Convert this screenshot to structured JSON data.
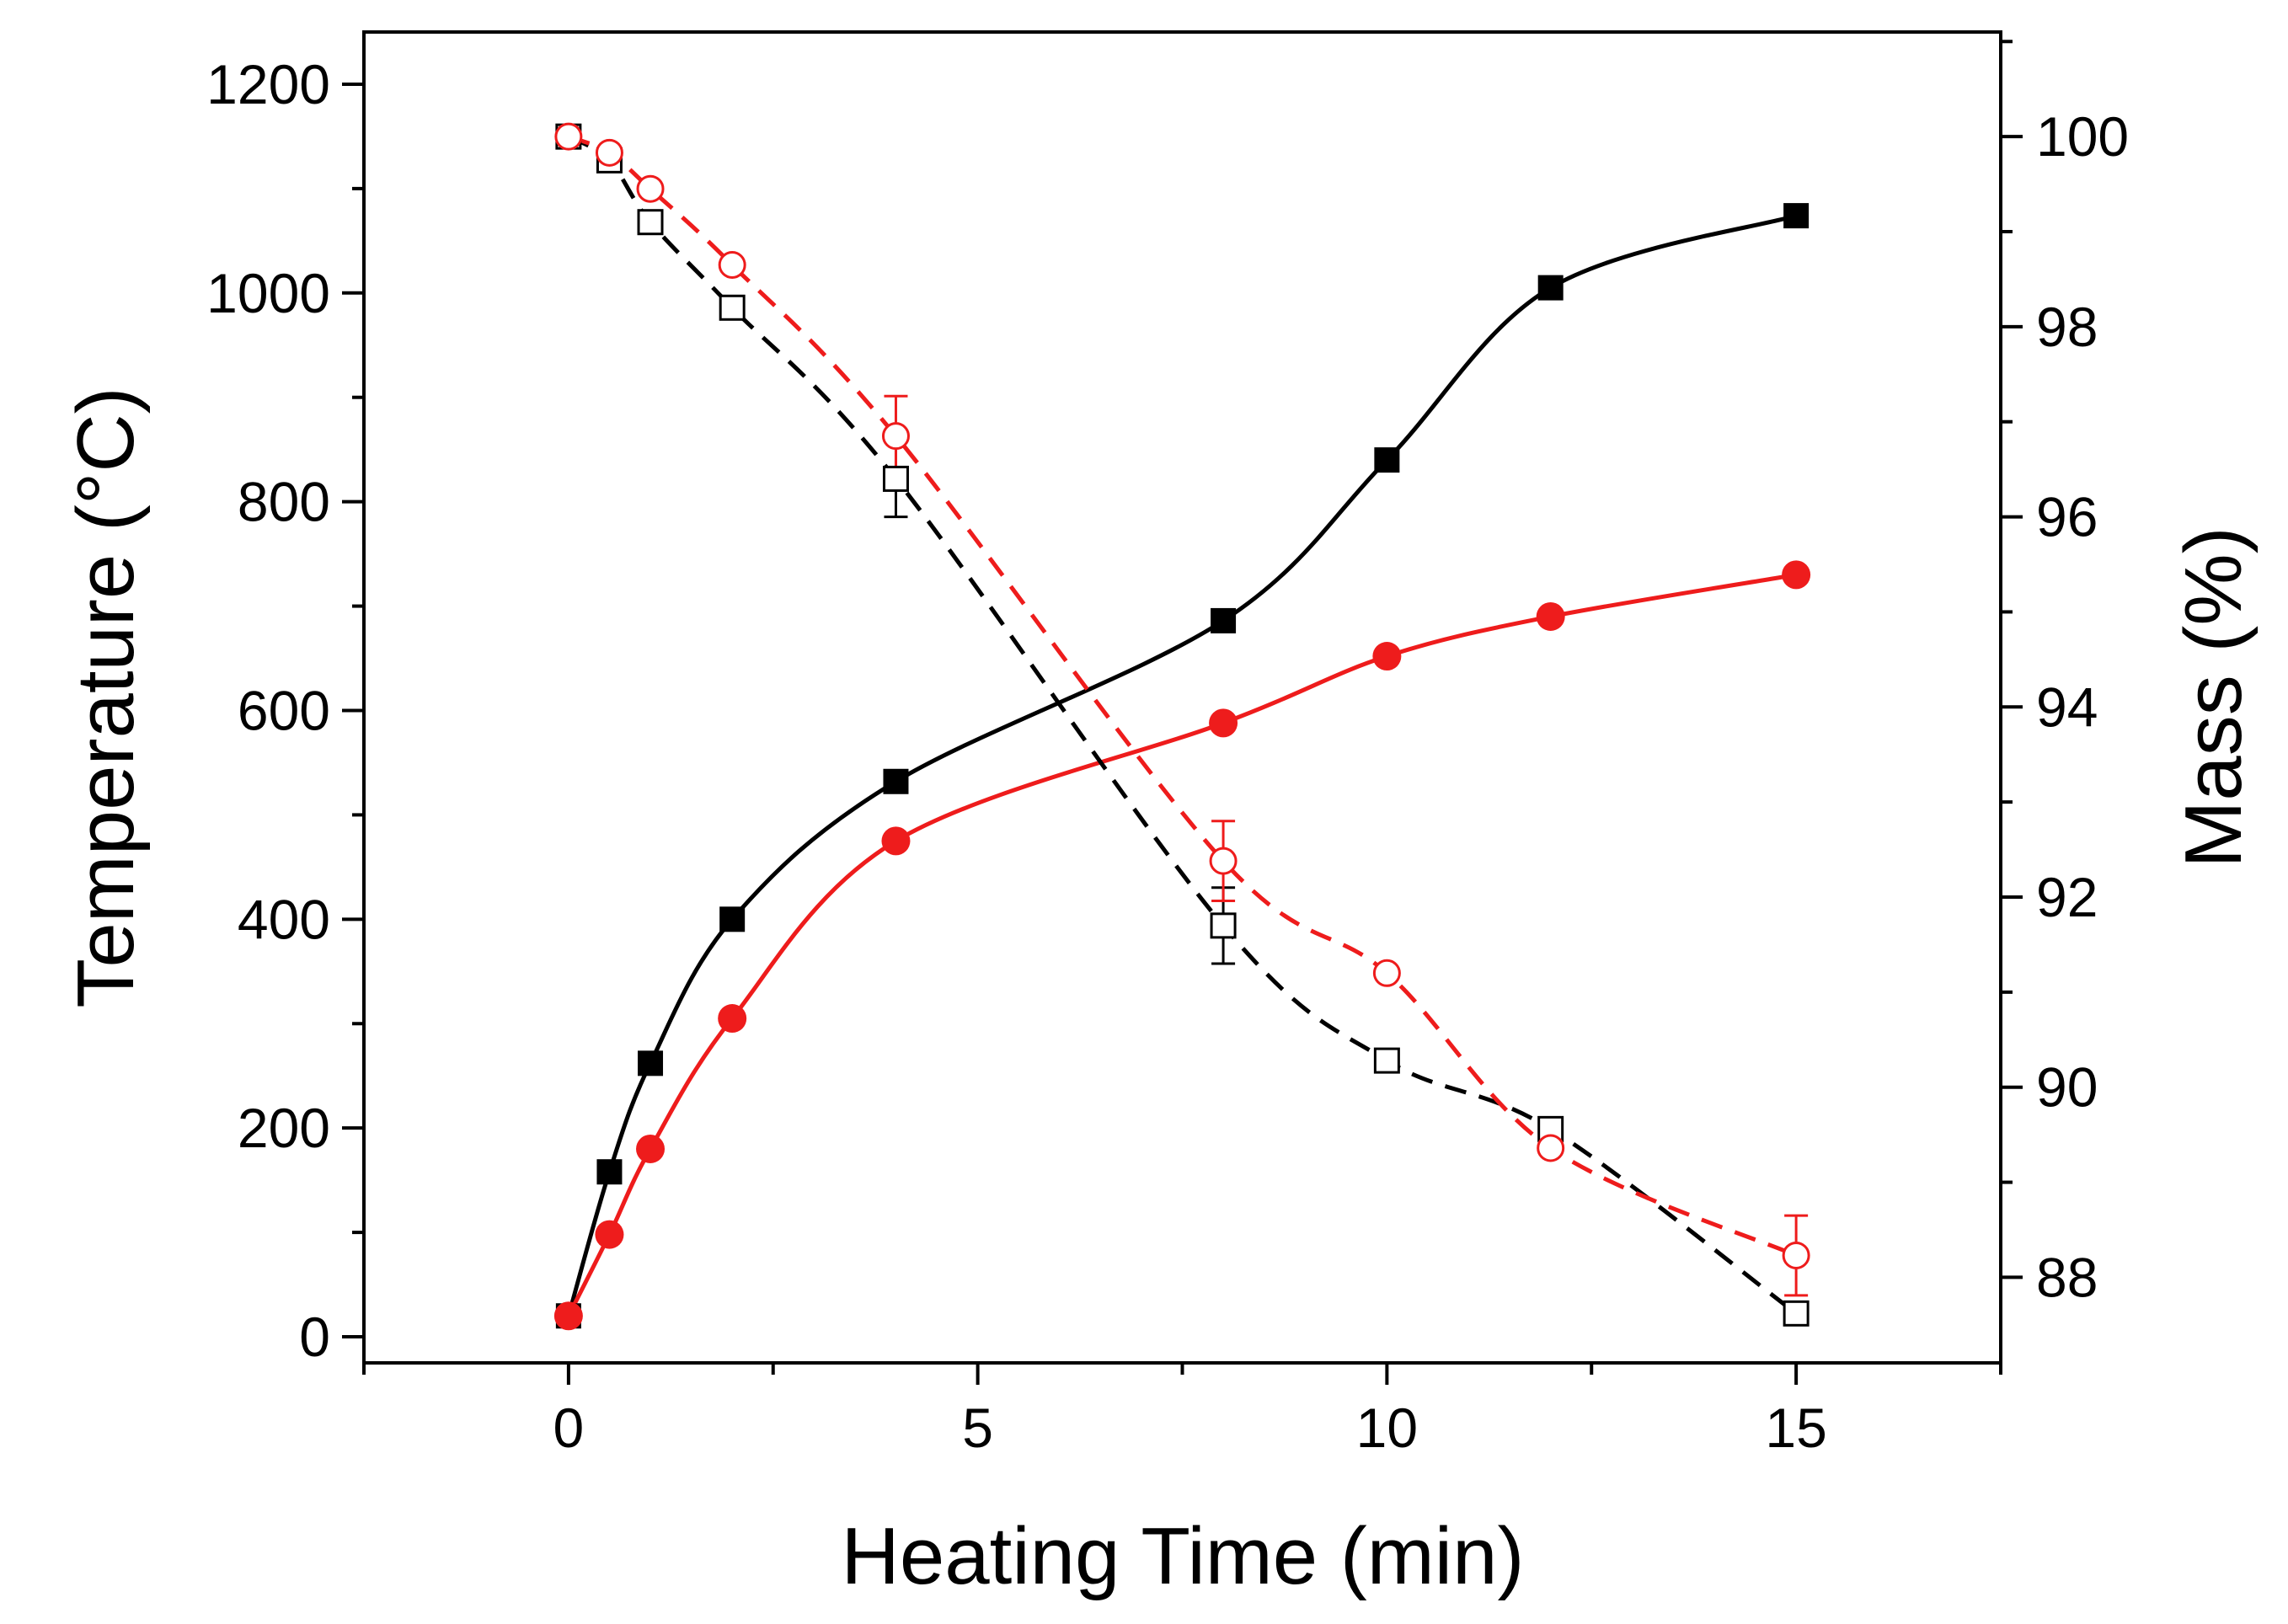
{
  "chart_data": {
    "type": "scatter",
    "title": "",
    "xlabel": "Heating Time (min)",
    "ylabel_left": "Temperature (°C)",
    "ylabel_right": "Mass (%)",
    "xlim": [
      -2.5,
      17.5
    ],
    "ylim_left": [
      -25,
      1250
    ],
    "ylim_right": [
      87.1,
      101.1
    ],
    "x_ticks": [
      0,
      5,
      10,
      15
    ],
    "y_left_ticks": [
      0,
      200,
      400,
      600,
      800,
      1000,
      1200
    ],
    "y_right_ticks": [
      88,
      90,
      92,
      94,
      96,
      98,
      100
    ],
    "grid": false,
    "legend": "none",
    "series": [
      {
        "name": "Temperature (black)",
        "axis": "left",
        "color": "#000000",
        "marker": "square-filled",
        "line": "solid",
        "x": [
          0,
          0.5,
          1,
          2,
          4,
          8,
          10,
          12,
          15
        ],
        "y": [
          20,
          158,
          262,
          400,
          532,
          686,
          840,
          1005,
          1074
        ]
      },
      {
        "name": "Temperature (red)",
        "axis": "left",
        "color": "#ee1c1c",
        "marker": "circle-filled",
        "line": "solid",
        "x": [
          0,
          0.5,
          1,
          2,
          4,
          8,
          10,
          12,
          15
        ],
        "y": [
          20,
          98,
          180,
          305,
          475,
          588,
          652,
          690,
          730
        ]
      },
      {
        "name": "Mass (black)",
        "axis": "right",
        "color": "#000000",
        "marker": "square-open",
        "line": "dashed",
        "x": [
          0,
          0.5,
          1,
          2,
          4,
          8,
          10,
          12,
          15
        ],
        "y": [
          100.0,
          99.75,
          99.1,
          98.2,
          96.4,
          91.7,
          90.28,
          89.56,
          87.62
        ],
        "err": [
          0,
          0,
          0.1,
          0,
          0.4,
          0.4,
          0,
          0,
          0
        ]
      },
      {
        "name": "Mass (red)",
        "axis": "right",
        "color": "#ee1c1c",
        "marker": "circle-open",
        "line": "dashed",
        "x": [
          0,
          0.5,
          1,
          2,
          4,
          8,
          10,
          12,
          15
        ],
        "y": [
          100.0,
          99.83,
          99.45,
          98.65,
          96.85,
          92.38,
          91.2,
          89.36,
          88.23
        ],
        "err": [
          0,
          0,
          0,
          0,
          0.42,
          0.42,
          0,
          0,
          0.42
        ]
      }
    ]
  }
}
